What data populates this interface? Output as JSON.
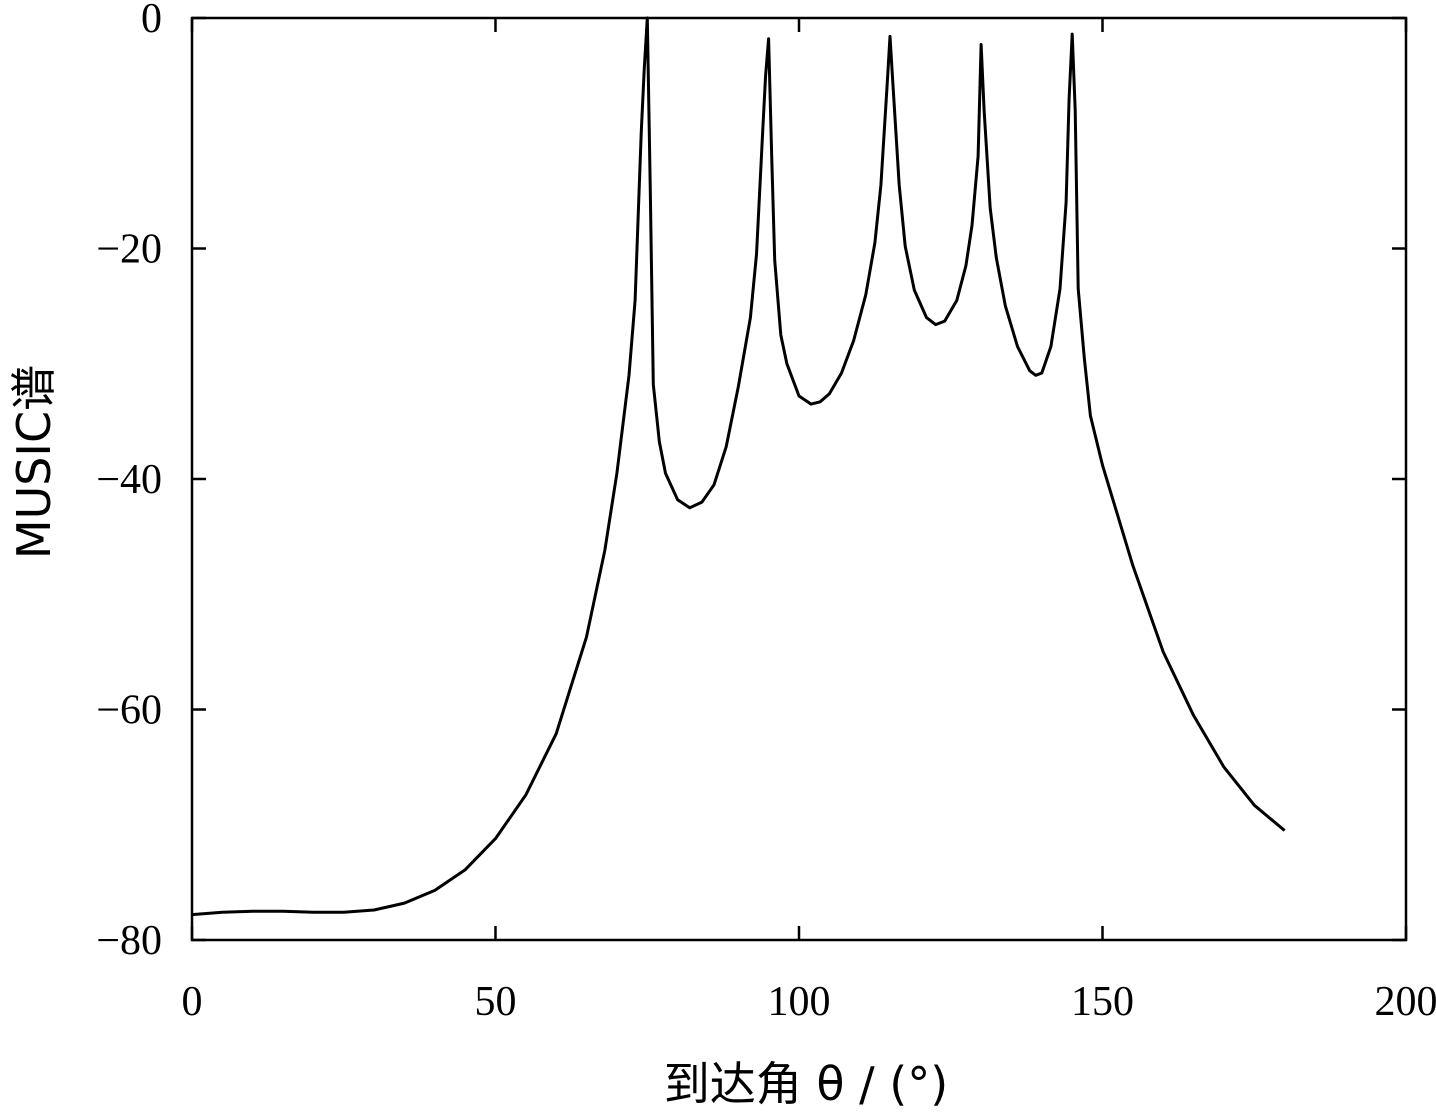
{
  "chart_data": {
    "type": "line",
    "title": "",
    "xlabel": "到达角 θ / (°)",
    "ylabel": "MUSIC谱",
    "xlim": [
      0,
      200
    ],
    "ylim": [
      -80,
      0
    ],
    "xticks": [
      0,
      50,
      100,
      150,
      200
    ],
    "yticks": [
      0,
      -20,
      -40,
      -60,
      -80
    ],
    "xtick_labels": [
      "0",
      "50",
      "100",
      "150",
      "200"
    ],
    "ytick_labels": [
      "0",
      "−20",
      "−40",
      "−60",
      "−80"
    ],
    "grid": false,
    "legend": "none",
    "colors": {
      "line": "#000000",
      "axes": "#000000",
      "background": "#ffffff"
    },
    "series": [
      {
        "x": [
          0,
          5,
          10,
          15,
          20,
          25,
          30,
          35,
          40,
          45,
          50,
          55,
          60,
          65,
          68,
          70,
          72,
          73,
          74,
          74.5,
          75,
          75.5,
          76,
          77,
          78,
          80,
          82,
          84,
          86,
          88,
          90,
          92,
          93,
          94,
          94.5,
          95,
          95.5,
          96,
          97,
          98,
          100,
          102,
          103.5,
          105,
          107,
          109,
          111,
          112.5,
          113.5,
          114.5,
          115,
          115.5,
          116.5,
          117.5,
          119,
          121,
          122.5,
          124,
          126,
          127.5,
          128.5,
          129.5,
          130,
          130.5,
          131.5,
          132.5,
          134,
          136,
          138,
          139,
          140,
          141.5,
          143,
          144,
          144.5,
          145,
          145.5,
          146,
          147,
          148,
          150,
          155,
          160,
          165,
          170,
          175,
          180
        ],
        "y": [
          -77.8,
          -77.6,
          -77.5,
          -77.5,
          -77.6,
          -77.6,
          -77.4,
          -76.8,
          -75.7,
          -73.9,
          -71.2,
          -67.4,
          -62.1,
          -53.7,
          -46.2,
          -39.5,
          -31.0,
          -24.5,
          -10.0,
          -4.5,
          0.0,
          -15.0,
          -31.8,
          -36.8,
          -39.5,
          -41.8,
          -42.5,
          -42.0,
          -40.5,
          -37.2,
          -32.0,
          -26.0,
          -20.5,
          -10.0,
          -5.0,
          -1.8,
          -12.0,
          -21.0,
          -27.5,
          -30.0,
          -32.8,
          -33.5,
          -33.3,
          -32.6,
          -30.8,
          -28.0,
          -24.0,
          -19.5,
          -14.5,
          -6.0,
          -1.6,
          -6.0,
          -14.5,
          -19.8,
          -23.6,
          -26.0,
          -26.6,
          -26.3,
          -24.5,
          -21.5,
          -18.0,
          -12.0,
          -2.3,
          -8.0,
          -16.5,
          -20.8,
          -25.0,
          -28.5,
          -30.6,
          -31.0,
          -30.8,
          -28.5,
          -23.5,
          -16.0,
          -7.0,
          -1.4,
          -8.0,
          -23.5,
          -29.5,
          -34.5,
          -38.8,
          -47.5,
          -55.0,
          -60.5,
          -65.0,
          -68.3,
          -70.5
        ]
      }
    ]
  }
}
